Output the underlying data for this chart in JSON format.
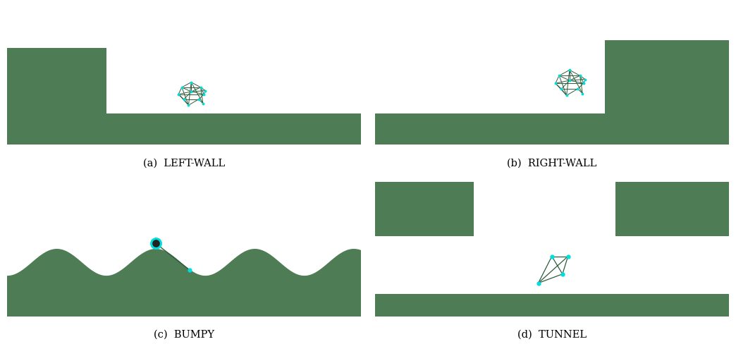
{
  "bg_color": "#f5dde0",
  "green_color": "#4e7d55",
  "robot_line_color": "#2d5c3a",
  "robot_node_color": "#00dddd",
  "panel_bg": "#ffffff",
  "label_a": "(a)  LEFT-WALL",
  "label_b": "(b)  RIGHT-WALL",
  "label_c": "(c)  BUMPY",
  "label_d": "(d)  TUNNEL",
  "label_fontsize": 10.5,
  "gap_color": "#e8e8e8"
}
